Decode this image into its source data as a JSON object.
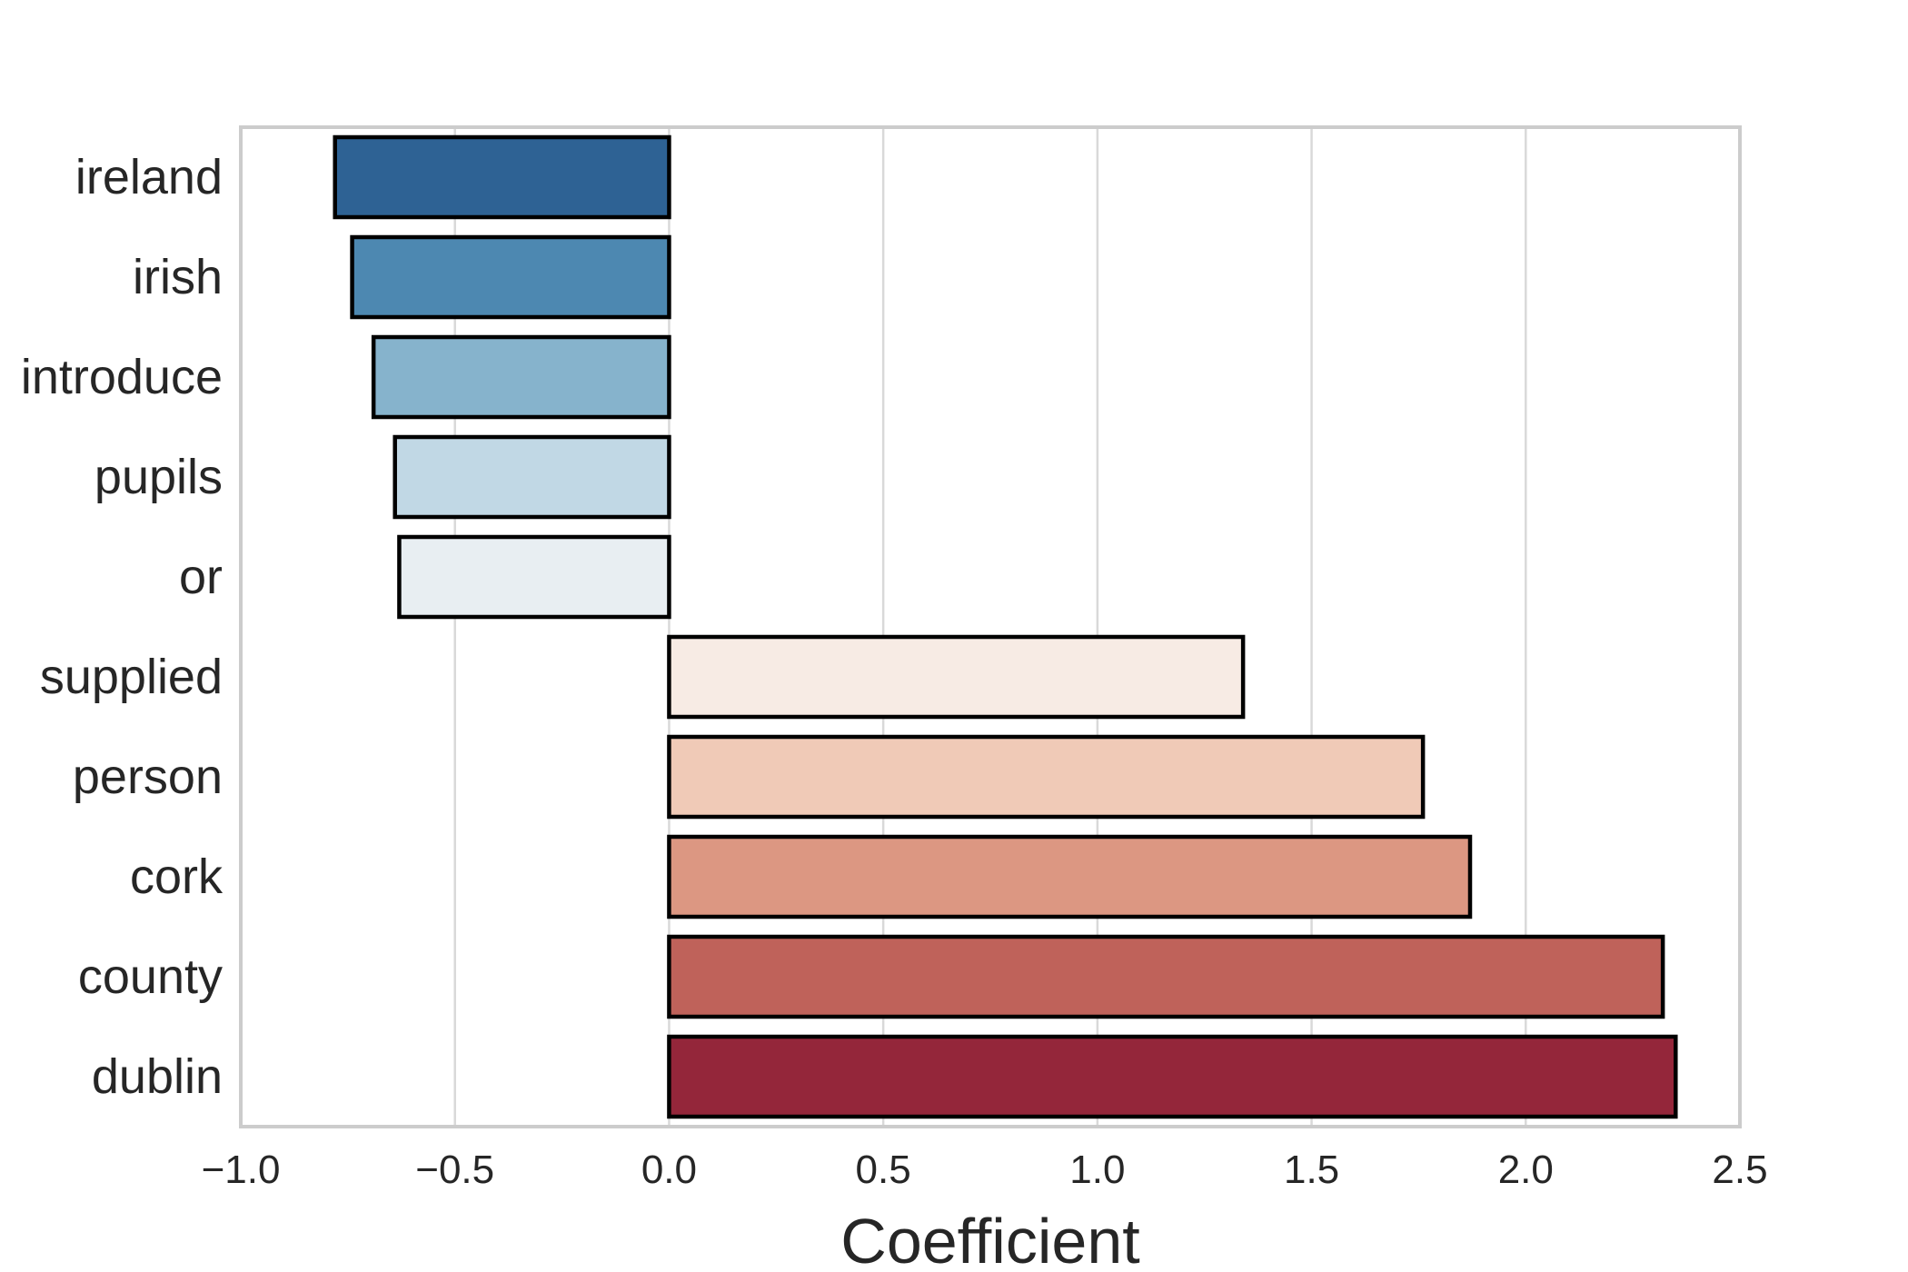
{
  "chart_data": {
    "type": "bar",
    "orientation": "horizontal",
    "categories": [
      "ireland",
      "irish",
      "introduce",
      "pupils",
      "or",
      "supplied",
      "person",
      "cork",
      "county",
      "dublin"
    ],
    "values": [
      -0.78,
      -0.74,
      -0.69,
      -0.64,
      -0.63,
      1.34,
      1.76,
      1.87,
      2.32,
      2.35
    ],
    "colors": [
      "#2e6294",
      "#4d88b1",
      "#86b3cc",
      "#c1d8e5",
      "#e8eef2",
      "#f7ebe4",
      "#f0cab7",
      "#dc9782",
      "#bf625a",
      "#94263a"
    ],
    "title": "",
    "xlabel": "Coefficient",
    "ylabel": "",
    "xlim": [
      -1.0,
      2.5
    ],
    "xticks": [
      "−1.0",
      "−0.5",
      "0.0",
      "0.5",
      "1.0",
      "1.5",
      "2.0",
      "2.5"
    ],
    "xtick_values": [
      -1.0,
      -0.5,
      0.0,
      0.5,
      1.0,
      1.5,
      2.0,
      2.5
    ],
    "grid": "vertical",
    "legend": "none"
  }
}
